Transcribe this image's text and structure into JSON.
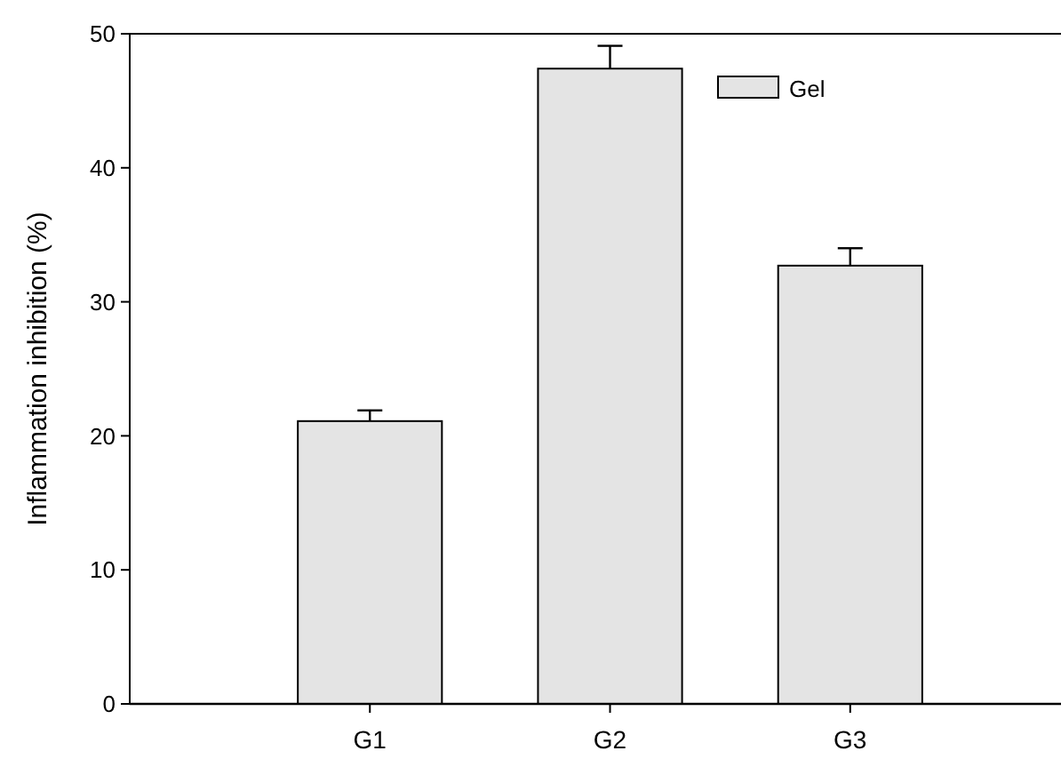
{
  "chart_data": {
    "type": "bar",
    "ylabel": "Inflammation inhibition (%)",
    "categories": [
      "G1",
      "G2",
      "G3"
    ],
    "series": [
      {
        "name": "Gel",
        "color": "#e4e4e4",
        "values": [
          21.1,
          47.4,
          32.7
        ],
        "errors": [
          0.8,
          1.7,
          1.3
        ]
      }
    ],
    "ylim": [
      0,
      50
    ],
    "yticks": [
      0,
      10,
      20,
      30,
      40,
      50
    ],
    "legend": "top right",
    "grid": false
  }
}
